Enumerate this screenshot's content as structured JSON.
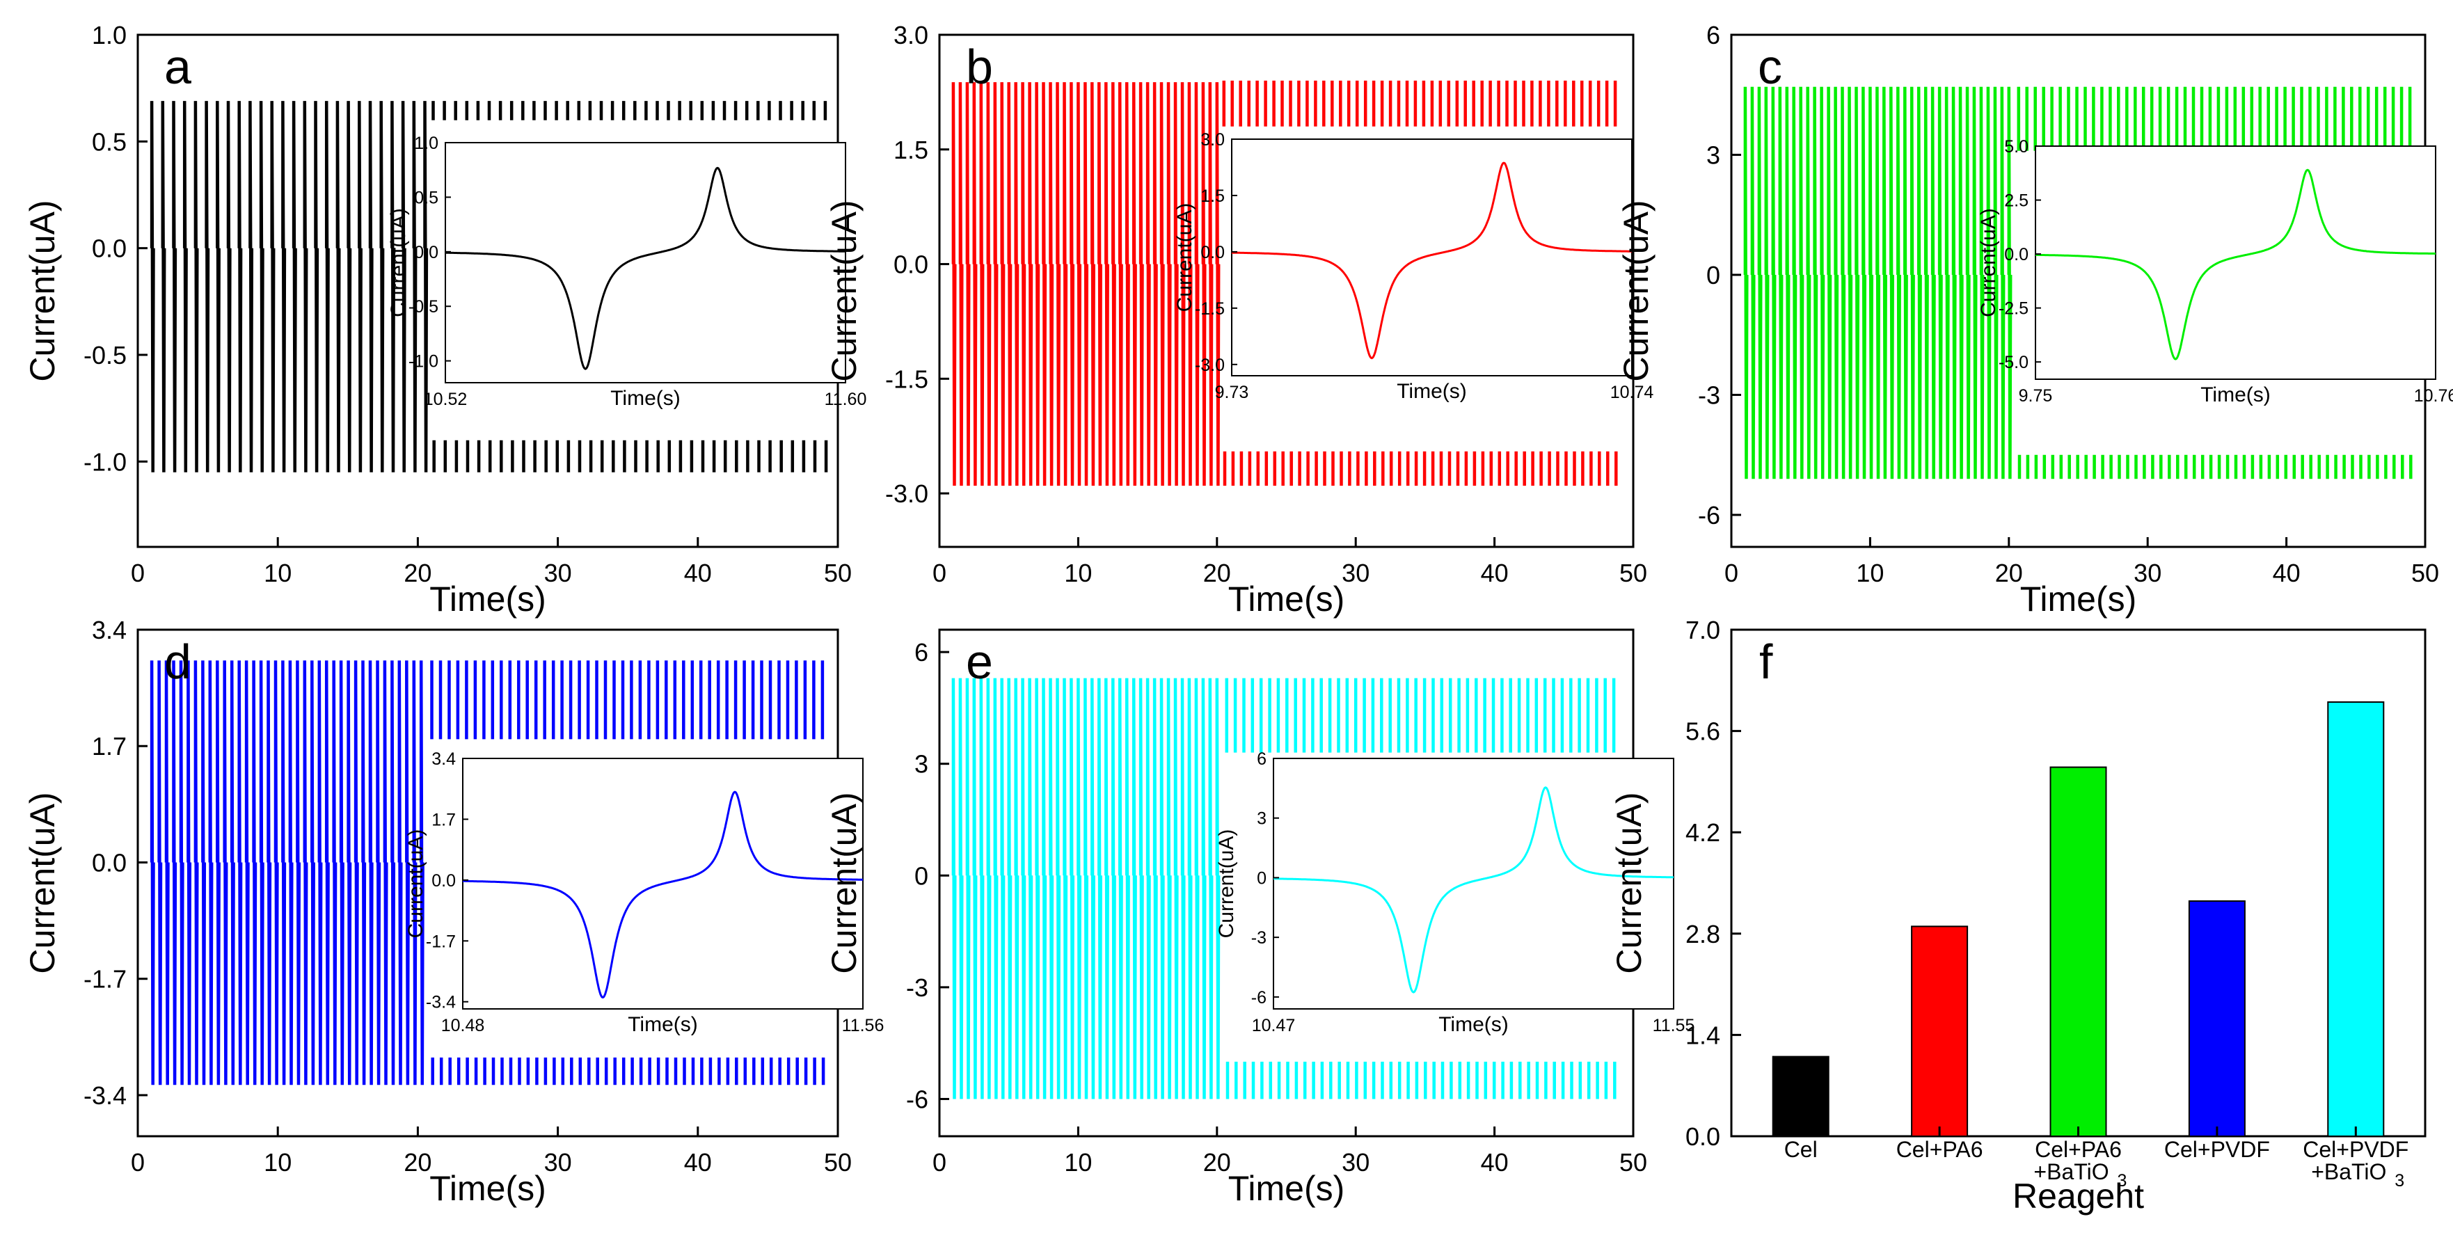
{
  "chart_data": [
    {
      "type": "line",
      "panel_label": "a",
      "color": "#000000",
      "xlabel": "Time(s)",
      "ylabel": "Current(uA)",
      "xlim": [
        0,
        50
      ],
      "ylim": [
        -1.4,
        1.0
      ],
      "xticks": [
        "0",
        "10",
        "20",
        "30",
        "40",
        "50"
      ],
      "yticks": [
        "1.0",
        "0.5",
        "0.0",
        "-0.5",
        "-1.0"
      ],
      "signal": {
        "start": 1.0,
        "end": 49.2,
        "period_left": 0.78,
        "period_right": 0.8,
        "switch": 20.8,
        "peak_left": 0.69,
        "trough_left": -1.05,
        "peak_right": 0.69,
        "trough_right": -1.05,
        "baseline_right_top": 0.6,
        "baseline_right_bottom": -0.9
      },
      "inset": {
        "xlabel": "Time(s)",
        "ylabel": "Current(uA)",
        "xlim": [
          10.52,
          11.6
        ],
        "ylim": [
          -1.2,
          1.0
        ],
        "xticks": [
          "10.52",
          "11.60"
        ],
        "yticks": [
          "1.0",
          "0.5",
          "0.0",
          "-0.5",
          "-1.0"
        ],
        "peak": 0.78,
        "trough": -1.08
      }
    },
    {
      "type": "line",
      "panel_label": "b",
      "color": "#ff0000",
      "xlabel": "Time(s)",
      "ylabel": "Current(uA)",
      "xlim": [
        0,
        50
      ],
      "ylim": [
        -3.7,
        3.0
      ],
      "xticks": [
        "0",
        "10",
        "20",
        "30",
        "40",
        "50"
      ],
      "yticks": [
        "3.0",
        "1.5",
        "0.0",
        "-1.5",
        "-3.0"
      ],
      "signal": {
        "start": 1.0,
        "end": 49.2,
        "period_left": 0.5,
        "period_right": 0.6,
        "switch": 20.2,
        "peak_left": 2.38,
        "trough_left": -2.9,
        "peak_right": 2.4,
        "trough_right": -2.9,
        "baseline_right_top": 1.8,
        "baseline_right_bottom": -2.45
      },
      "inset": {
        "xlabel": "Time(s)",
        "ylabel": "Current(uA)",
        "xlim": [
          9.73,
          10.74
        ],
        "ylim": [
          -3.3,
          3.0
        ],
        "xticks": [
          "9.73",
          "10.74"
        ],
        "yticks": [
          "3.0",
          "1.5",
          "0.0",
          "-1.5",
          "-3.0"
        ],
        "peak": 2.4,
        "trough": -2.85
      }
    },
    {
      "type": "line",
      "panel_label": "c",
      "color": "#00ee00",
      "xlabel": "Time(s)",
      "ylabel": "Current(uA)",
      "xlim": [
        0,
        50
      ],
      "ylim": [
        -6.8,
        6.0
      ],
      "xticks": [
        "0",
        "10",
        "20",
        "30",
        "40",
        "50"
      ],
      "yticks": [
        "6",
        "3",
        "0",
        "-3",
        "-6"
      ],
      "signal": {
        "start": 1.0,
        "end": 49.5,
        "period_left": 0.5,
        "period_right": 0.6,
        "switch": 20.4,
        "peak_left": 4.7,
        "trough_left": -5.1,
        "peak_right": 4.7,
        "trough_right": -5.1,
        "baseline_right_top": 3.1,
        "baseline_right_bottom": -4.5
      },
      "inset": {
        "xlabel": "Time(s)",
        "ylabel": "Current(uA)",
        "xlim": [
          9.75,
          10.76
        ],
        "ylim": [
          -5.8,
          5.0
        ],
        "xticks": [
          "9.75",
          "10.76"
        ],
        "yticks": [
          "5.0",
          "2.5",
          "0.0",
          "-2.5",
          "-5.0"
        ],
        "peak": 3.95,
        "trough": -4.9
      }
    },
    {
      "type": "line",
      "panel_label": "d",
      "color": "#0000ff",
      "xlabel": "Time(s)",
      "ylabel": "Current(uA)",
      "xlim": [
        0,
        50
      ],
      "ylim": [
        -4.0,
        3.4
      ],
      "xticks": [
        "0",
        "10",
        "20",
        "30",
        "40",
        "50"
      ],
      "yticks": [
        "3.4",
        "1.7",
        "0.0",
        "-1.7",
        "-3.4"
      ],
      "signal": {
        "start": 1.0,
        "end": 49.0,
        "period_left": 0.52,
        "period_right": 0.62,
        "switch": 20.7,
        "peak_left": 2.95,
        "trough_left": -3.25,
        "peak_right": 2.95,
        "trough_right": -3.25,
        "baseline_right_top": 1.8,
        "baseline_right_bottom": -2.85
      },
      "inset": {
        "xlabel": "Time(s)",
        "ylabel": "Current(uA)",
        "xlim": [
          10.48,
          11.56
        ],
        "ylim": [
          -3.6,
          3.4
        ],
        "xticks": [
          "10.48",
          "11.56"
        ],
        "yticks": [
          "3.4",
          "1.7",
          "0.0",
          "-1.7",
          "-3.4"
        ],
        "peak": 2.5,
        "trough": -3.3
      }
    },
    {
      "type": "line",
      "panel_label": "e",
      "color": "#00ffff",
      "xlabel": "Time(s)",
      "ylabel": "Current(uA)",
      "xlim": [
        0,
        50
      ],
      "ylim": [
        -7.0,
        6.6
      ],
      "xticks": [
        "0",
        "10",
        "20",
        "30",
        "40",
        "50"
      ],
      "yticks": [
        "6",
        "3",
        "0",
        "-3",
        "-6"
      ],
      "signal": {
        "start": 1.0,
        "end": 49.0,
        "period_left": 0.5,
        "period_right": 0.62,
        "switch": 20.4,
        "peak_left": 5.3,
        "trough_left": -6.0,
        "peak_right": 5.3,
        "trough_right": -6.0,
        "baseline_right_top": 3.3,
        "baseline_right_bottom": -5.0
      },
      "inset": {
        "xlabel": "Time(s)",
        "ylabel": "Current(uA)",
        "xlim": [
          10.47,
          11.55
        ],
        "ylim": [
          -6.6,
          6.0
        ],
        "xticks": [
          "10.47",
          "11.55"
        ],
        "yticks": [
          "6",
          "3",
          "0",
          "-3",
          "-6"
        ],
        "peak": 4.6,
        "trough": -5.8
      }
    },
    {
      "type": "bar",
      "panel_label": "f",
      "xlabel": "Reageht",
      "ylabel": "Current(uA)",
      "ylim": [
        0.0,
        7.0
      ],
      "yticks": [
        "7.0",
        "5.6",
        "4.2",
        "2.8",
        "1.4",
        "0.0"
      ],
      "categories": [
        {
          "line1": "Cel",
          "line2": ""
        },
        {
          "line1": "Cel+PA6",
          "line2": ""
        },
        {
          "line1": "Cel+PA6",
          "line2": "+BaTiO",
          "sub": "3"
        },
        {
          "line1": "Cel+PVDF",
          "line2": ""
        },
        {
          "line1": "Cel+PVDF",
          "line2": "+BaTiO",
          "sub": "3"
        }
      ],
      "values": [
        1.1,
        2.9,
        5.1,
        3.25,
        6.0
      ],
      "colors": [
        "#000000",
        "#ff0000",
        "#00ee00",
        "#0000ff",
        "#00ffff"
      ]
    }
  ]
}
